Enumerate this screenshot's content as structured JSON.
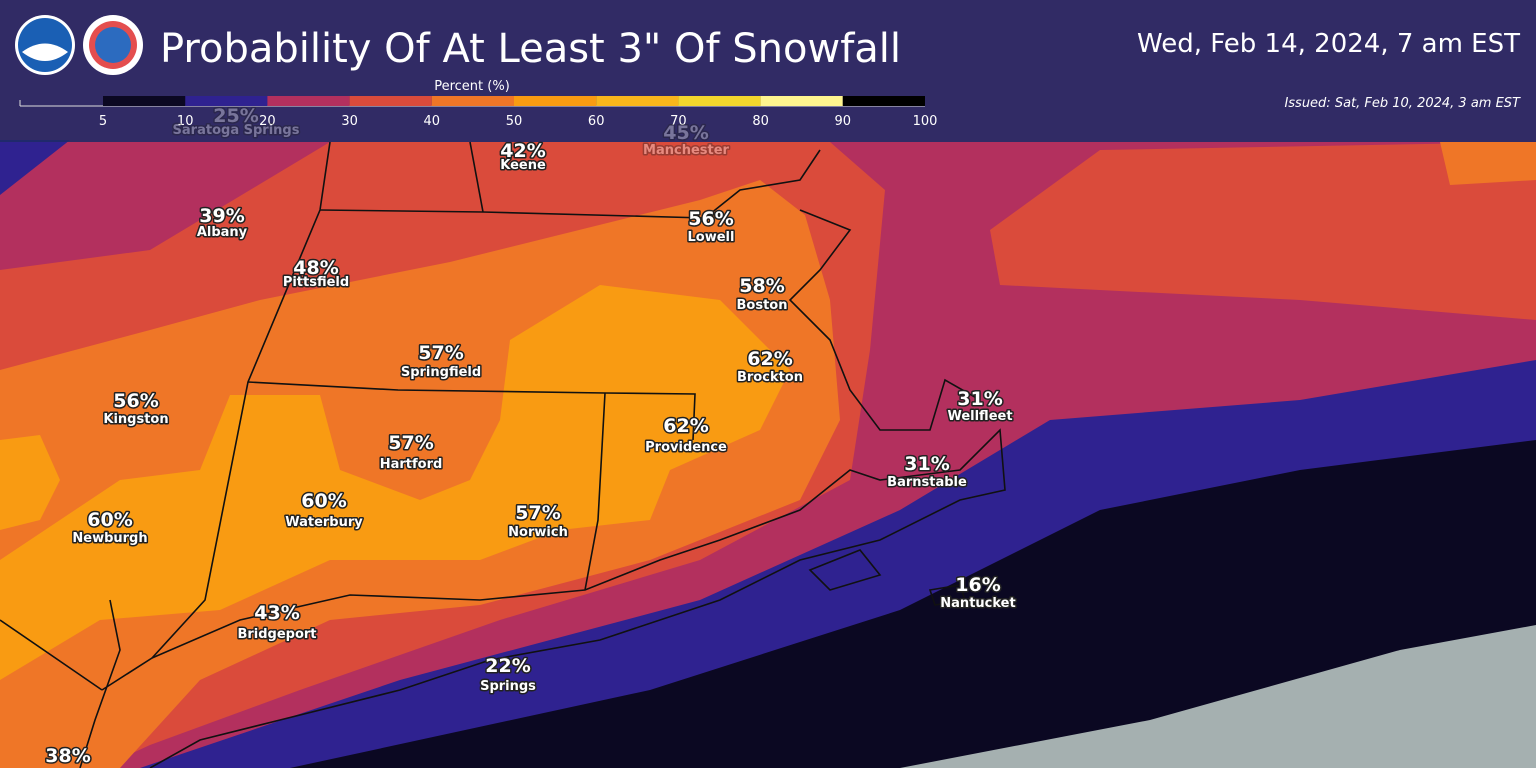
{
  "header": {
    "title": "Probability Of At Least 3\" Of Snowfall",
    "valid": "Wed, Feb 14, 2024, 7 am EST",
    "issued": "Issued: Sat, Feb 10, 2024, 3 am EST"
  },
  "legend": {
    "label": "Percent (%)",
    "ticks": [
      5,
      10,
      20,
      30,
      40,
      50,
      60,
      70,
      80,
      90,
      100
    ],
    "colors": [
      "#0b0822",
      "#2a1258",
      "#2f2290",
      "#b3305e",
      "#da4b3b",
      "#ef7627",
      "#f99b12",
      "#f9b61c",
      "#f3d62c",
      "#fff58f"
    ]
  },
  "cities": [
    {
      "value": "25%",
      "name": "Saratoga Springs"
    },
    {
      "value": "45%",
      "name": "Manchester"
    },
    {
      "value": "42%",
      "name": "Keene"
    },
    {
      "value": "39%",
      "name": "Albany"
    },
    {
      "value": "56%",
      "name": "Lowell"
    },
    {
      "value": "48%",
      "name": "Pittsfield"
    },
    {
      "value": "58%",
      "name": "Boston"
    },
    {
      "value": "57%",
      "name": "Springfield"
    },
    {
      "value": "62%",
      "name": "Brockton"
    },
    {
      "value": "56%",
      "name": "Kingston"
    },
    {
      "value": "31%",
      "name": "Wellfleet"
    },
    {
      "value": "57%",
      "name": "Hartford"
    },
    {
      "value": "62%",
      "name": "Providence"
    },
    {
      "value": "31%",
      "name": "Barnstable"
    },
    {
      "value": "60%",
      "name": "Waterbury"
    },
    {
      "value": "57%",
      "name": "Norwich"
    },
    {
      "value": "60%",
      "name": "Newburgh"
    },
    {
      "value": "16%",
      "name": "Nantucket"
    },
    {
      "value": "43%",
      "name": "Bridgeport"
    },
    {
      "value": "22%",
      "name": "Springs"
    },
    {
      "value": "38%"
    }
  ]
}
